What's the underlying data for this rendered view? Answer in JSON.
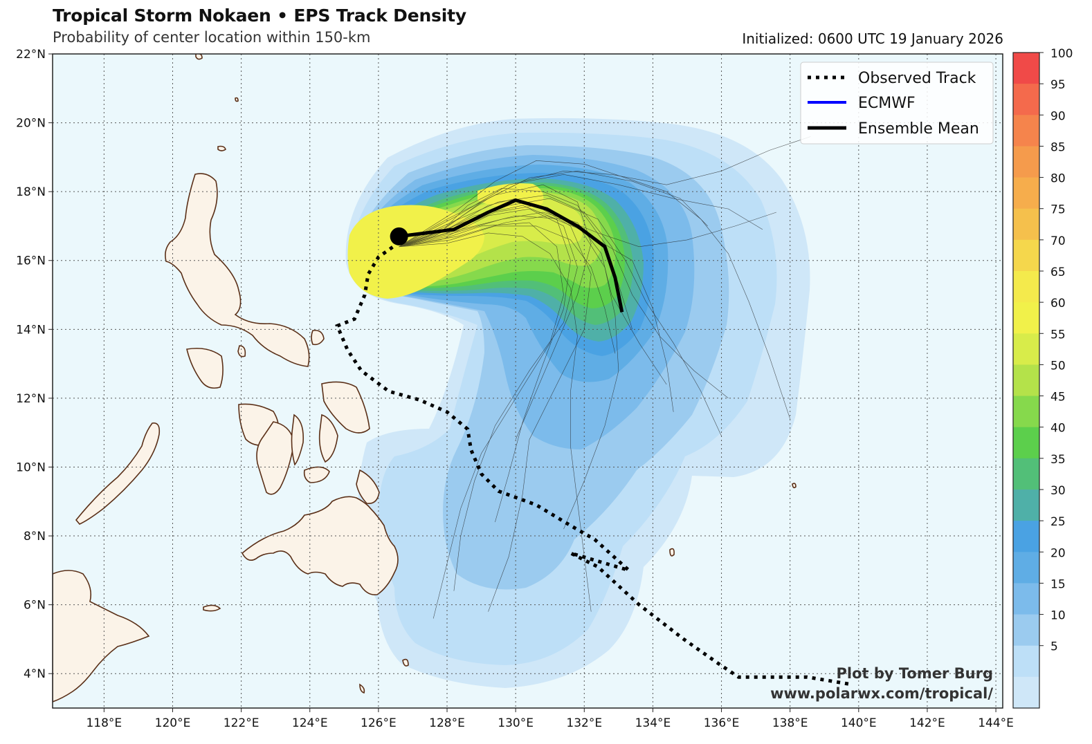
{
  "header": {
    "title": "Tropical Storm Nokaen • EPS Track Density",
    "subtitle": "Probability of center location within 150-km",
    "initialized": "Initialized: 0600 UTC 19 January 2026"
  },
  "axes": {
    "lon_ticks": [
      "118°E",
      "120°E",
      "122°E",
      "124°E",
      "126°E",
      "128°E",
      "130°E",
      "132°E",
      "134°E",
      "136°E",
      "138°E",
      "140°E",
      "142°E",
      "144°E"
    ],
    "lat_ticks": [
      "22°N",
      "20°N",
      "18°N",
      "16°N",
      "14°N",
      "12°N",
      "10°N",
      "8°N",
      "6°N",
      "4°N"
    ]
  },
  "legend": {
    "items": [
      {
        "label": "Observed Track",
        "style": "dotted",
        "color": "#000000"
      },
      {
        "label": "ECMWF",
        "style": "solid",
        "color": "#0000ff"
      },
      {
        "label": "Ensemble Mean",
        "style": "solid-thick",
        "color": "#000000"
      }
    ]
  },
  "colorbar": {
    "labels": [
      "100",
      "95",
      "90",
      "85",
      "80",
      "75",
      "70",
      "65",
      "60",
      "55",
      "50",
      "45",
      "40",
      "35",
      "30",
      "25",
      "20",
      "15",
      "10",
      "5"
    ],
    "colors": [
      "#f04a48",
      "#f46a4c",
      "#f5844c",
      "#f59b4c",
      "#f6ad4c",
      "#f5c04c",
      "#f5d74c",
      "#f4ea4c",
      "#f1f14a",
      "#d8ec4a",
      "#b4e24a",
      "#86d94c",
      "#5ccf4c",
      "#52bf78",
      "#4fb0a8",
      "#4aa2e3",
      "#5fade5",
      "#7cbbeb",
      "#9bcbef",
      "#bddff7",
      "#cfe7f8"
    ]
  },
  "credit": {
    "line1": "Plot by Tomer Burg",
    "line2": "www.polarwx.com/tropical/"
  },
  "map_data": {
    "lon_range": [
      116.5,
      144.2
    ],
    "lat_range": [
      3.0,
      22.0
    ],
    "current_position": {
      "lon": 126.6,
      "lat": 16.7
    },
    "ensemble_mean": [
      [
        126.6,
        16.7
      ],
      [
        128.2,
        16.9
      ],
      [
        129.2,
        17.4
      ],
      [
        130.0,
        17.75
      ],
      [
        130.9,
        17.5
      ],
      [
        131.8,
        17.0
      ],
      [
        132.6,
        16.4
      ],
      [
        132.9,
        15.5
      ],
      [
        133.1,
        14.5
      ]
    ],
    "observed_track": [
      [
        139.7,
        3.7
      ],
      [
        138.5,
        3.9
      ],
      [
        137.5,
        3.9
      ],
      [
        136.5,
        3.9
      ],
      [
        135.9,
        4.3
      ],
      [
        134.9,
        5.0
      ],
      [
        133.6,
        6.0
      ],
      [
        132.4,
        7.1
      ],
      [
        131.6,
        7.5
      ],
      [
        133.3,
        7.0
      ],
      [
        132.3,
        7.9
      ],
      [
        131.6,
        8.3
      ],
      [
        130.6,
        8.9
      ],
      [
        129.5,
        9.3
      ],
      [
        129.0,
        9.8
      ],
      [
        128.7,
        10.5
      ],
      [
        128.6,
        11.1
      ],
      [
        128.0,
        11.6
      ],
      [
        127.2,
        11.95
      ],
      [
        126.3,
        12.2
      ],
      [
        125.5,
        12.8
      ],
      [
        125.1,
        13.4
      ],
      [
        124.8,
        14.1
      ],
      [
        125.3,
        14.3
      ],
      [
        125.6,
        15.0
      ],
      [
        125.7,
        15.6
      ],
      [
        126.0,
        16.1
      ],
      [
        126.5,
        16.45
      ]
    ],
    "spaghetti": [
      [
        [
          126.6,
          16.4
        ],
        [
          127.8,
          16.8
        ],
        [
          128.6,
          17.6
        ],
        [
          129.6,
          18.1
        ],
        [
          130.8,
          18.0
        ],
        [
          131.8,
          17.6
        ],
        [
          132.6,
          16.5
        ],
        [
          133.0,
          15.3
        ],
        [
          133.4,
          14.0
        ]
      ],
      [
        [
          126.6,
          16.4
        ],
        [
          128.0,
          17.0
        ],
        [
          129.2,
          17.8
        ],
        [
          130.4,
          18.4
        ],
        [
          131.8,
          18.6
        ],
        [
          133.4,
          18.3
        ],
        [
          134.8,
          17.8
        ],
        [
          135.6,
          17.0
        ]
      ],
      [
        [
          126.6,
          16.4
        ],
        [
          128.1,
          16.6
        ],
        [
          129.4,
          17.0
        ],
        [
          130.6,
          17.0
        ],
        [
          131.6,
          16.6
        ],
        [
          132.2,
          15.8
        ],
        [
          132.6,
          14.6
        ],
        [
          132.9,
          13.3
        ]
      ],
      [
        [
          126.6,
          16.4
        ],
        [
          128.0,
          16.9
        ],
        [
          129.2,
          17.6
        ],
        [
          130.0,
          17.8
        ],
        [
          131.0,
          17.4
        ],
        [
          132.2,
          16.7
        ],
        [
          133.4,
          16.0
        ],
        [
          134.0,
          14.6
        ],
        [
          134.4,
          13.0
        ],
        [
          134.6,
          11.6
        ]
      ],
      [
        [
          126.6,
          16.4
        ],
        [
          128.3,
          17.3
        ],
        [
          129.8,
          18.2
        ],
        [
          131.4,
          18.5
        ],
        [
          133.0,
          18.2
        ],
        [
          134.6,
          17.8
        ],
        [
          136.2,
          17.5
        ],
        [
          137.2,
          16.9
        ]
      ],
      [
        [
          126.6,
          16.4
        ],
        [
          128.2,
          16.8
        ],
        [
          129.6,
          17.2
        ],
        [
          130.8,
          17.4
        ],
        [
          131.8,
          17.1
        ],
        [
          132.5,
          16.2
        ],
        [
          132.8,
          15.0
        ],
        [
          133.6,
          13.6
        ],
        [
          134.4,
          12.4
        ]
      ],
      [
        [
          126.6,
          16.4
        ],
        [
          128.0,
          17.2
        ],
        [
          129.4,
          17.9
        ],
        [
          130.8,
          18.2
        ],
        [
          131.8,
          17.7
        ],
        [
          132.2,
          16.5
        ],
        [
          131.8,
          15.0
        ],
        [
          131.2,
          13.6
        ],
        [
          130.6,
          12.2
        ],
        [
          130.0,
          10.8
        ]
      ],
      [
        [
          126.6,
          16.4
        ],
        [
          127.6,
          16.7
        ],
        [
          128.8,
          17.3
        ],
        [
          130.2,
          17.6
        ],
        [
          131.2,
          17.2
        ],
        [
          131.6,
          16.0
        ],
        [
          131.4,
          14.6
        ],
        [
          130.8,
          13.0
        ],
        [
          130.2,
          11.3
        ],
        [
          129.8,
          9.8
        ],
        [
          129.4,
          8.4
        ]
      ],
      [
        [
          126.6,
          16.4
        ],
        [
          128.2,
          17.0
        ],
        [
          129.8,
          17.6
        ],
        [
          131.0,
          17.8
        ],
        [
          132.4,
          17.2
        ],
        [
          133.2,
          16.0
        ],
        [
          133.8,
          14.8
        ],
        [
          134.6,
          13.6
        ],
        [
          135.4,
          12.2
        ],
        [
          136.0,
          10.9
        ]
      ],
      [
        [
          126.6,
          16.4
        ],
        [
          128.4,
          16.9
        ],
        [
          130.0,
          17.3
        ],
        [
          131.4,
          17.2
        ],
        [
          132.4,
          16.8
        ],
        [
          133.6,
          16.4
        ],
        [
          135.0,
          16.6
        ],
        [
          136.4,
          17.0
        ],
        [
          137.6,
          17.4
        ]
      ],
      [
        [
          126.6,
          16.4
        ],
        [
          127.8,
          16.6
        ],
        [
          129.0,
          17.0
        ],
        [
          130.4,
          17.1
        ],
        [
          131.2,
          16.4
        ],
        [
          131.4,
          15.0
        ],
        [
          131.0,
          13.6
        ],
        [
          130.0,
          12.0
        ],
        [
          129.0,
          10.4
        ],
        [
          128.4,
          8.8
        ],
        [
          128.0,
          7.2
        ],
        [
          127.6,
          5.6
        ]
      ],
      [
        [
          126.6,
          16.4
        ],
        [
          128.0,
          16.8
        ],
        [
          129.4,
          17.4
        ],
        [
          130.6,
          17.6
        ],
        [
          131.6,
          17.0
        ],
        [
          132.2,
          15.6
        ],
        [
          132.0,
          14.0
        ],
        [
          131.2,
          12.4
        ],
        [
          130.4,
          10.8
        ],
        [
          130.2,
          9.2
        ],
        [
          129.8,
          7.4
        ],
        [
          129.2,
          5.8
        ]
      ],
      [
        [
          126.6,
          16.4
        ],
        [
          128.2,
          17.4
        ],
        [
          129.4,
          18.3
        ],
        [
          130.6,
          18.9
        ],
        [
          132.0,
          18.8
        ],
        [
          133.2,
          18.4
        ],
        [
          134.4,
          18.0
        ],
        [
          135.4,
          17.2
        ],
        [
          136.2,
          16.2
        ],
        [
          136.8,
          14.8
        ],
        [
          137.4,
          13.2
        ],
        [
          138.0,
          11.4
        ]
      ],
      [
        [
          126.6,
          16.4
        ],
        [
          128.0,
          16.5
        ],
        [
          129.2,
          16.8
        ],
        [
          130.2,
          16.7
        ],
        [
          131.0,
          16.2
        ],
        [
          131.6,
          15.2
        ],
        [
          131.8,
          13.8
        ],
        [
          131.6,
          12.2
        ],
        [
          131.6,
          10.6
        ],
        [
          131.8,
          9.0
        ],
        [
          132.0,
          7.4
        ],
        [
          132.2,
          5.8
        ]
      ],
      [
        [
          126.6,
          16.4
        ],
        [
          128.1,
          17.1
        ],
        [
          129.5,
          17.7
        ],
        [
          130.9,
          17.9
        ],
        [
          132.0,
          17.4
        ],
        [
          132.8,
          16.4
        ],
        [
          133.4,
          15.0
        ],
        [
          134.2,
          13.8
        ],
        [
          135.2,
          12.8
        ],
        [
          136.2,
          12.0
        ]
      ],
      [
        [
          126.6,
          16.4
        ],
        [
          128.3,
          16.7
        ],
        [
          129.7,
          17.1
        ],
        [
          130.9,
          17.3
        ],
        [
          131.9,
          16.9
        ],
        [
          132.6,
          15.8
        ],
        [
          132.9,
          14.4
        ],
        [
          133.0,
          12.8
        ],
        [
          132.6,
          11.2
        ],
        [
          132.0,
          9.6
        ],
        [
          131.4,
          8.2
        ]
      ],
      [
        [
          126.6,
          16.4
        ],
        [
          127.9,
          16.9
        ],
        [
          129.0,
          17.7
        ],
        [
          130.2,
          18.3
        ],
        [
          131.4,
          18.6
        ],
        [
          132.8,
          18.5
        ],
        [
          134.4,
          18.2
        ],
        [
          136.0,
          18.6
        ],
        [
          137.4,
          19.2
        ],
        [
          138.6,
          19.6
        ]
      ],
      [
        [
          126.6,
          16.4
        ],
        [
          128.0,
          16.7
        ],
        [
          129.2,
          17.3
        ],
        [
          130.4,
          17.5
        ],
        [
          131.4,
          17.0
        ],
        [
          131.8,
          15.8
        ],
        [
          131.4,
          14.2
        ],
        [
          130.4,
          12.8
        ],
        [
          129.4,
          11.2
        ],
        [
          128.8,
          9.6
        ],
        [
          128.4,
          8.0
        ],
        [
          128.2,
          6.4
        ]
      ]
    ]
  }
}
